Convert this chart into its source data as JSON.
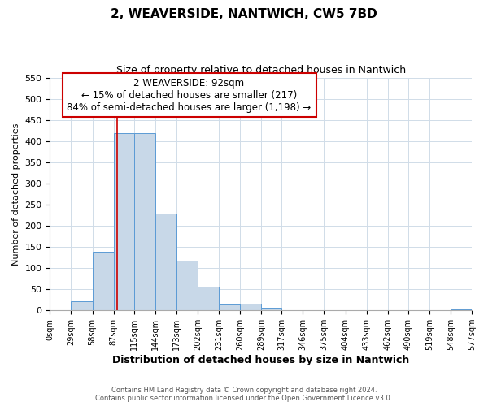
{
  "title": "2, WEAVERSIDE, NANTWICH, CW5 7BD",
  "subtitle": "Size of property relative to detached houses in Nantwich",
  "xlabel": "Distribution of detached houses by size in Nantwich",
  "ylabel": "Number of detached properties",
  "bin_edges": [
    0,
    29,
    58,
    87,
    115,
    144,
    173,
    202,
    231,
    260,
    289,
    317,
    346,
    375,
    404,
    433,
    462,
    490,
    519,
    548,
    577
  ],
  "bin_labels": [
    "0sqm",
    "29sqm",
    "58sqm",
    "87sqm",
    "115sqm",
    "144sqm",
    "173sqm",
    "202sqm",
    "231sqm",
    "260sqm",
    "289sqm",
    "317sqm",
    "346sqm",
    "375sqm",
    "404sqm",
    "433sqm",
    "462sqm",
    "490sqm",
    "519sqm",
    "548sqm",
    "577sqm"
  ],
  "counts": [
    0,
    22,
    138,
    418,
    418,
    228,
    118,
    57,
    13,
    16,
    7,
    0,
    0,
    0,
    0,
    0,
    0,
    0,
    0,
    3
  ],
  "bar_color": "#c8d8e8",
  "bar_edge_color": "#5b9bd5",
  "ylim": [
    0,
    550
  ],
  "yticks": [
    0,
    50,
    100,
    150,
    200,
    250,
    300,
    350,
    400,
    450,
    500,
    550
  ],
  "property_line_x": 92,
  "property_line_color": "#cc0000",
  "annotation_line1": "2 WEAVERSIDE: 92sqm",
  "annotation_line2": "← 15% of detached houses are smaller (217)",
  "annotation_line3": "84% of semi-detached houses are larger (1,198) →",
  "annotation_box_color": "#ffffff",
  "annotation_box_edge_color": "#cc0000",
  "footer_line1": "Contains HM Land Registry data © Crown copyright and database right 2024.",
  "footer_line2": "Contains public sector information licensed under the Open Government Licence v3.0.",
  "background_color": "#ffffff",
  "grid_color": "#d0dce8"
}
